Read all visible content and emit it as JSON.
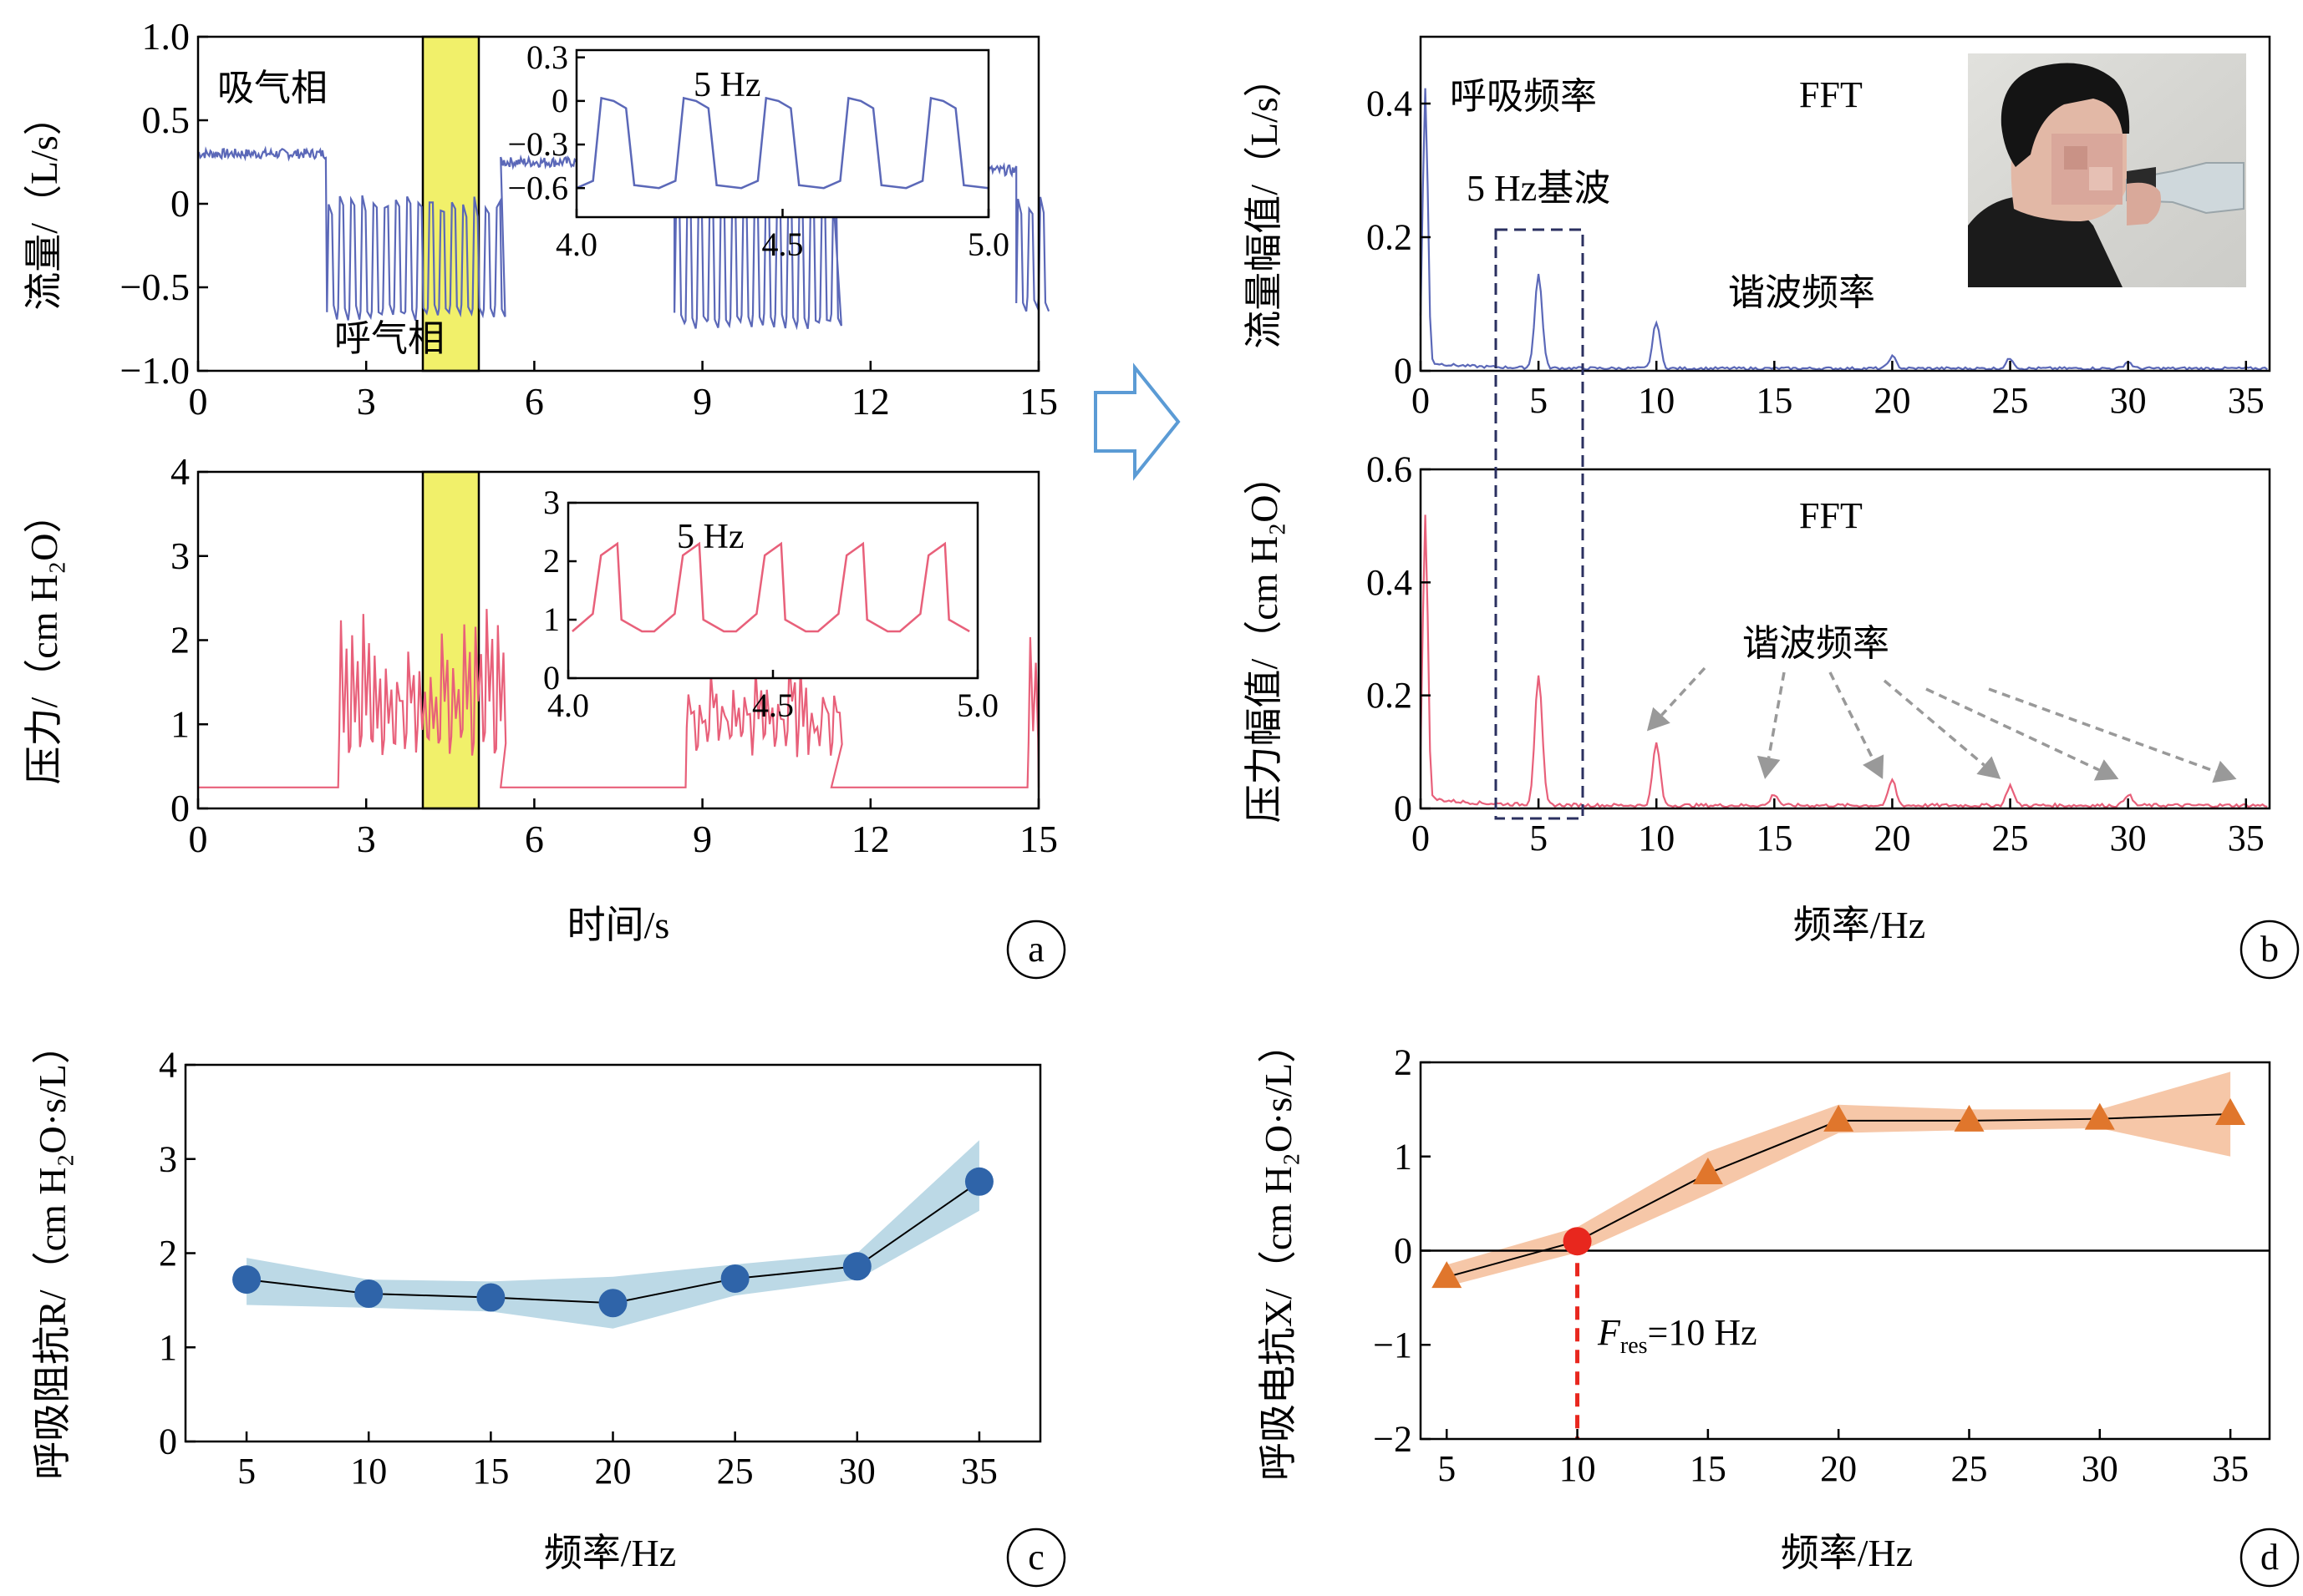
{
  "colors": {
    "flow": "#5b68b8",
    "pressure": "#e8607a",
    "highlight": "#f1f06a",
    "band_c": "#bcd9e6",
    "dot_c": "#2f64a9",
    "band_d": "#f6c7a8",
    "tri_d": "#e0762c",
    "resonance": "#e8271e",
    "arrow": "#999999",
    "big_arrow": "#5b9bd5",
    "axis": "#000000"
  },
  "chart_data": [
    {
      "id": "a-top",
      "type": "line",
      "ylabel": "流量/（L/s）",
      "xlim": [
        0,
        15
      ],
      "ylim": [
        -1.0,
        1.0
      ],
      "xticks": [
        0,
        3,
        6,
        9,
        12,
        15
      ],
      "yticks": [
        -1.0,
        -0.5,
        0,
        0.5,
        1.0
      ],
      "ytick_labels": [
        "−1.0",
        "−0.5",
        "0",
        "0.5",
        "1.0"
      ],
      "highlight_x": [
        4,
        5
      ],
      "annotations": [
        "吸气相",
        "呼气相"
      ],
      "breathing_segments": [
        {
          "x0": 0.0,
          "x1": 2.3,
          "level": 0.3,
          "oscillating": false
        },
        {
          "x0": 2.3,
          "x1": 5.4,
          "level": -0.55,
          "oscillating": true
        },
        {
          "x0": 5.4,
          "x1": 8.5,
          "level": 0.25,
          "oscillating": false
        },
        {
          "x0": 8.5,
          "x1": 11.3,
          "level": -0.6,
          "oscillating": true
        },
        {
          "x0": 11.3,
          "x1": 14.6,
          "level": 0.2,
          "oscillating": false
        },
        {
          "x0": 14.6,
          "x1": 15.0,
          "level": -0.5,
          "oscillating": true
        }
      ],
      "inset": {
        "title": "5 Hz",
        "xlim": [
          4.0,
          5.0
        ],
        "ylim": [
          -0.8,
          0.35
        ],
        "xticks": [
          4.0,
          4.5,
          5.0
        ],
        "yticks": [
          0.3,
          0,
          -0.3,
          -0.6
        ],
        "ytick_labels": [
          "0.3",
          "0",
          "−0.3",
          "−0.6"
        ]
      }
    },
    {
      "id": "a-bottom",
      "type": "line",
      "xlabel": "时间/s",
      "ylabel": "压力/（cm H₂O）",
      "xlim": [
        0,
        15
      ],
      "ylim": [
        0,
        4
      ],
      "xticks": [
        0,
        3,
        6,
        9,
        12,
        15
      ],
      "yticks": [
        0,
        1,
        2,
        3,
        4
      ],
      "highlight_x": [
        4,
        5
      ],
      "baseline": 0.25,
      "breathing_segments": [
        {
          "x0": 2.5,
          "x1": 5.4,
          "peak": 2.0
        },
        {
          "x0": 8.7,
          "x1": 11.3,
          "peak": 1.5
        },
        {
          "x0": 14.8,
          "x1": 15.0,
          "peak": 2.1
        }
      ],
      "inset": {
        "title": "5 Hz",
        "xlim": [
          4.0,
          5.0
        ],
        "ylim": [
          0,
          3
        ],
        "xticks": [
          4.0,
          4.5,
          5.0
        ],
        "yticks": [
          0,
          1,
          2,
          3
        ]
      },
      "panel_label": "a"
    },
    {
      "id": "b-top",
      "type": "line",
      "ylabel": "流量幅值/（L/s）",
      "xlim": [
        0,
        36
      ],
      "ylim": [
        0,
        0.5
      ],
      "xticks": [
        0,
        5,
        10,
        15,
        20,
        25,
        30,
        35
      ],
      "yticks": [
        0,
        0.2,
        0.4
      ],
      "annotations": [
        "呼吸频率",
        "FFT",
        "5 Hz基波",
        "谐波频率"
      ],
      "peaks": [
        {
          "x": 0.2,
          "y": 0.41
        },
        {
          "x": 5.0,
          "y": 0.14
        },
        {
          "x": 10.0,
          "y": 0.07
        },
        {
          "x": 20.0,
          "y": 0.018
        },
        {
          "x": 25.0,
          "y": 0.015
        },
        {
          "x": 30.0,
          "y": 0.01
        }
      ]
    },
    {
      "id": "b-bottom",
      "type": "line",
      "xlabel": "频率/Hz",
      "ylabel": "压力幅值/（cm H₂O）",
      "xlim": [
        0,
        36
      ],
      "ylim": [
        0,
        0.6
      ],
      "xticks": [
        0,
        5,
        10,
        15,
        20,
        25,
        30,
        35
      ],
      "yticks": [
        0,
        0.2,
        0.4,
        0.6
      ],
      "annotations": [
        "FFT",
        "谐波频率"
      ],
      "peaks": [
        {
          "x": 0.2,
          "y": 0.5
        },
        {
          "x": 5.0,
          "y": 0.23
        },
        {
          "x": 10.0,
          "y": 0.11
        },
        {
          "x": 15.0,
          "y": 0.02
        },
        {
          "x": 20.0,
          "y": 0.045
        },
        {
          "x": 25.0,
          "y": 0.035
        },
        {
          "x": 30.0,
          "y": 0.02
        }
      ],
      "harmonic_arrows_x": [
        10,
        15,
        20,
        25,
        30,
        35
      ],
      "panel_label": "b"
    },
    {
      "id": "c",
      "type": "line",
      "xlabel": "频率/Hz",
      "ylabel": "呼吸阻抗R/（cm H₂O·s/L）",
      "xlim": [
        2.5,
        37.5
      ],
      "ylim": [
        0,
        4
      ],
      "xticks": [
        5,
        10,
        15,
        20,
        25,
        30,
        35
      ],
      "yticks": [
        0,
        1,
        2,
        3,
        4
      ],
      "series": [
        {
          "x": [
            5,
            10,
            15,
            20,
            25,
            30,
            35
          ],
          "y": [
            1.72,
            1.57,
            1.53,
            1.47,
            1.73,
            1.86,
            2.76
          ],
          "band_lower": [
            1.45,
            1.42,
            1.38,
            1.2,
            1.55,
            1.72,
            2.45
          ],
          "band_upper": [
            1.95,
            1.72,
            1.7,
            1.75,
            1.88,
            2.0,
            3.2
          ]
        }
      ],
      "panel_label": "c"
    },
    {
      "id": "d",
      "type": "line",
      "xlabel": "频率/Hz",
      "ylabel": "呼吸电抗X/（cm H₂O·s/L）",
      "xlim": [
        4.0,
        36.5
      ],
      "ylim": [
        -2,
        2
      ],
      "xticks": [
        5,
        10,
        15,
        20,
        25,
        30,
        35
      ],
      "yticks": [
        -2,
        -1,
        0,
        1,
        2
      ],
      "ytick_labels": [
        "−2",
        "−1",
        "0",
        "1",
        "2"
      ],
      "series": [
        {
          "x": [
            5,
            10,
            15,
            20,
            25,
            30,
            35
          ],
          "y": [
            -0.28,
            0.1,
            0.82,
            1.38,
            1.38,
            1.4,
            1.45
          ],
          "band_lower": [
            -0.38,
            -0.02,
            0.6,
            1.25,
            1.28,
            1.3,
            1.0
          ],
          "band_upper": [
            -0.15,
            0.25,
            1.05,
            1.55,
            1.5,
            1.5,
            1.9
          ]
        }
      ],
      "resonance": {
        "x": 10,
        "y": 0.1,
        "label_main": "F",
        "label_sub": "res",
        "label_value": "=10 Hz"
      },
      "panel_label": "d"
    }
  ]
}
